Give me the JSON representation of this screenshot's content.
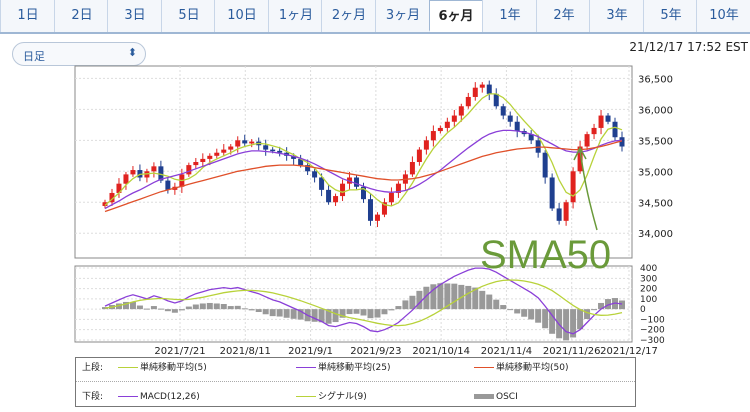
{
  "tabs": [
    {
      "label": "1日",
      "active": false
    },
    {
      "label": "2日",
      "active": false
    },
    {
      "label": "3日",
      "active": false
    },
    {
      "label": "5日",
      "active": false
    },
    {
      "label": "10日",
      "active": false
    },
    {
      "label": "1ヶ月",
      "active": false
    },
    {
      "label": "2ヶ月",
      "active": false
    },
    {
      "label": "3ヶ月",
      "active": false
    },
    {
      "label": "6ヶ月",
      "active": true
    },
    {
      "label": "1年",
      "active": false
    },
    {
      "label": "2年",
      "active": false
    },
    {
      "label": "3年",
      "active": false
    },
    {
      "label": "5年",
      "active": false
    },
    {
      "label": "10年",
      "active": false
    }
  ],
  "period_select": {
    "value": "日足"
  },
  "timestamp": "21/12/17 17:52 EST",
  "annotation": "SMA50",
  "colors": {
    "up": "#e0221f",
    "down": "#1f3f8f",
    "sma5": "#b8d23a",
    "sma25": "#8a3fd8",
    "sma50": "#e0502a",
    "macd": "#8a3fd8",
    "signal": "#b8d23a",
    "osci": "#999999",
    "annotation": "#6a9a3a"
  },
  "legend": {
    "upper_label": "上段:",
    "lower_label": "下段:",
    "upper_items": [
      "単純移動平均(5)",
      "単純移動平均(25)",
      "単純移動平均(50)"
    ],
    "lower_items": [
      "MACD(12,26)",
      "シグナル(9)",
      "OSCI"
    ]
  },
  "chart_data": [
    {
      "type": "candlestick",
      "y_ticks": [
        34000,
        34500,
        35000,
        35500,
        36000,
        36500
      ],
      "y_tick_labels": [
        "34,000",
        "34,500",
        "35,000",
        "35,500",
        "36,000",
        "36,500"
      ],
      "ylim": [
        33600,
        36700
      ],
      "x_tick_labels": [
        "2021/7/21",
        "2021/8/11",
        "2021/9/1",
        "2021/9/23",
        "2021/10/14",
        "2021/11/4",
        "2021/11/26",
        "2021/12/17"
      ],
      "close": [
        34500,
        34650,
        34800,
        34950,
        35020,
        34900,
        35000,
        35080,
        34850,
        34700,
        34750,
        34950,
        35100,
        35150,
        35200,
        35250,
        35300,
        35350,
        35400,
        35500,
        35450,
        35480,
        35420,
        35350,
        35330,
        35300,
        35250,
        35200,
        35100,
        35000,
        34900,
        34700,
        34500,
        34600,
        34800,
        34900,
        34750,
        34550,
        34200,
        34300,
        34500,
        34650,
        34800,
        34950,
        35150,
        35350,
        35500,
        35650,
        35700,
        35800,
        35900,
        36050,
        36200,
        36350,
        36400,
        36250,
        36050,
        35900,
        35800,
        35650,
        35600,
        35500,
        35300,
        34900,
        34400,
        34200,
        34500,
        35000,
        35400,
        35600,
        35700,
        35900,
        35800,
        35550,
        35400
      ],
      "series": [
        {
          "name": "単純移動平均(5)",
          "values": [
            34450,
            34550,
            34650,
            34780,
            34880,
            34950,
            34960,
            34970,
            34950,
            34920,
            34870,
            34850,
            34880,
            34950,
            35060,
            35140,
            35200,
            35250,
            35300,
            35360,
            35400,
            35430,
            35450,
            35440,
            35410,
            35380,
            35320,
            35270,
            35200,
            35140,
            35050,
            34920,
            34780,
            34700,
            34660,
            34700,
            34700,
            34720,
            34640,
            34540,
            34460,
            34440,
            34490,
            34640,
            34810,
            35010,
            35200,
            35370,
            35500,
            35620,
            35710,
            35820,
            35930,
            36060,
            36180,
            36250,
            36250,
            36190,
            36080,
            35940,
            35810,
            35690,
            35570,
            35370,
            35140,
            34860,
            34660,
            34600,
            34700,
            34940,
            35240,
            35520,
            35680,
            35710,
            35670
          ]
        },
        {
          "name": "単純移動平均(25)",
          "values": [
            34400,
            34460,
            34520,
            34590,
            34650,
            34700,
            34760,
            34820,
            34870,
            34900,
            34930,
            34960,
            35000,
            35040,
            35080,
            35120,
            35160,
            35200,
            35240,
            35280,
            35310,
            35330,
            35330,
            35320,
            35310,
            35290,
            35270,
            35240,
            35210,
            35170,
            35120,
            35060,
            35000,
            34940,
            34880,
            34840,
            34800,
            34760,
            34720,
            34690,
            34670,
            34660,
            34670,
            34690,
            34730,
            34790,
            34860,
            34940,
            35020,
            35110,
            35200,
            35290,
            35380,
            35460,
            35540,
            35600,
            35640,
            35660,
            35660,
            35650,
            35630,
            35600,
            35560,
            35500,
            35440,
            35380,
            35330,
            35310,
            35310,
            35330,
            35370,
            35420,
            35460,
            35490,
            35500
          ]
        },
        {
          "name": "単純移動平均(50)",
          "values": [
            34350,
            34390,
            34430,
            34470,
            34510,
            34550,
            34590,
            34630,
            34670,
            34700,
            34730,
            34760,
            34790,
            34820,
            34850,
            34880,
            34910,
            34940,
            34970,
            35000,
            35020,
            35040,
            35060,
            35080,
            35090,
            35100,
            35100,
            35100,
            35090,
            35080,
            35060,
            35040,
            35020,
            35000,
            34980,
            34960,
            34940,
            34920,
            34900,
            34880,
            34870,
            34860,
            34860,
            34870,
            34880,
            34900,
            34930,
            34960,
            35000,
            35040,
            35080,
            35120,
            35160,
            35200,
            35240,
            35270,
            35300,
            35320,
            35340,
            35360,
            35370,
            35380,
            35390,
            35390,
            35380,
            35370,
            35360,
            35350,
            35350,
            35360,
            35380,
            35400,
            35430,
            35460,
            35490
          ]
        }
      ]
    },
    {
      "type": "line",
      "y_ticks": [
        400,
        300,
        200,
        100,
        0,
        -100,
        -200,
        -300
      ],
      "y_tick_labels": [
        "400",
        "300",
        "200",
        "100",
        "0",
        "−100",
        "−200",
        "−300"
      ],
      "ylim": [
        -320,
        420
      ],
      "series": [
        {
          "name": "MACD(12,26)",
          "values": [
            30,
            60,
            90,
            120,
            140,
            120,
            100,
            130,
            110,
            80,
            60,
            80,
            120,
            150,
            170,
            190,
            200,
            210,
            200,
            210,
            190,
            170,
            150,
            120,
            90,
            70,
            40,
            10,
            -20,
            -60,
            -90,
            -120,
            -160,
            -170,
            -150,
            -130,
            -140,
            -170,
            -210,
            -220,
            -200,
            -170,
            -130,
            -70,
            -10,
            60,
            130,
            190,
            240,
            280,
            320,
            350,
            380,
            400,
            400,
            390,
            360,
            320,
            280,
            240,
            200,
            160,
            110,
            30,
            -60,
            -150,
            -220,
            -240,
            -200,
            -130,
            -60,
            0,
            40,
            60,
            50
          ]
        },
        {
          "name": "シグナル(9)",
          "values": [
            10,
            20,
            35,
            50,
            70,
            85,
            95,
            100,
            105,
            100,
            95,
            92,
            95,
            105,
            115,
            130,
            145,
            160,
            170,
            178,
            182,
            182,
            178,
            170,
            158,
            142,
            124,
            104,
            82,
            58,
            33,
            8,
            -18,
            -44,
            -66,
            -82,
            -95,
            -108,
            -122,
            -138,
            -150,
            -158,
            -160,
            -155,
            -140,
            -118,
            -88,
            -52,
            -12,
            30,
            72,
            114,
            154,
            190,
            222,
            248,
            268,
            280,
            284,
            282,
            274,
            260,
            242,
            216,
            180,
            134,
            84,
            36,
            -4,
            -34,
            -52,
            -60,
            -58,
            -48,
            -34
          ]
        }
      ]
    }
  ]
}
